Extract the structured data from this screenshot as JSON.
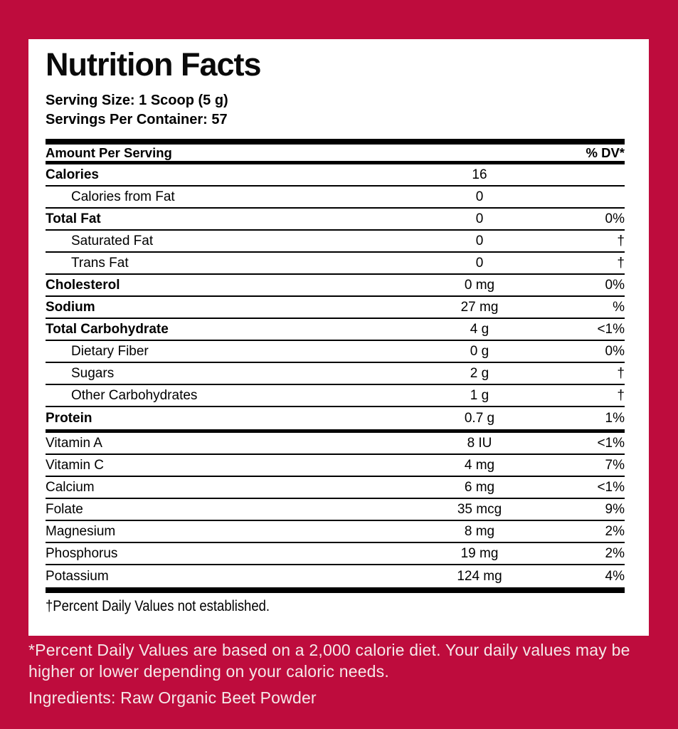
{
  "colors": {
    "background_red": "#BE0C3D",
    "panel_white": "#FFFFFF",
    "text_black": "#000000",
    "footer_text": "#F5E9E9"
  },
  "header": {
    "title": "Nutrition Facts",
    "serving_size": "Serving Size: 1 Scoop (5 g)",
    "servings_per_container": "Servings Per Container: 57",
    "amount_per_serving": "Amount Per Serving",
    "dv_header": "% DV*"
  },
  "rows": [
    {
      "label": "Calories",
      "amount": "16",
      "dv": "",
      "style": "bold",
      "bar_after": ""
    },
    {
      "label": "Calories from Fat",
      "amount": "0",
      "dv": "",
      "style": "indent",
      "bar_after": ""
    },
    {
      "label": "Total Fat",
      "amount": "0",
      "dv": "0%",
      "style": "bold",
      "bar_after": ""
    },
    {
      "label": "Saturated Fat",
      "amount": "0",
      "dv": "†",
      "style": "indent",
      "bar_after": ""
    },
    {
      "label": "Trans Fat",
      "amount": "0",
      "dv": "†",
      "style": "indent",
      "bar_after": ""
    },
    {
      "label": "Cholesterol",
      "amount": "0 mg",
      "dv": "0%",
      "style": "bold",
      "bar_after": ""
    },
    {
      "label": "Sodium",
      "amount": "27 mg",
      "dv": "%",
      "style": "bold",
      "bar_after": ""
    },
    {
      "label": "Total Carbohydrate",
      "amount": "4 g",
      "dv": "<1%",
      "style": "bold",
      "bar_after": ""
    },
    {
      "label": "Dietary Fiber",
      "amount": "0 g",
      "dv": "0%",
      "style": "indent",
      "bar_after": ""
    },
    {
      "label": "Sugars",
      "amount": "2 g",
      "dv": "†",
      "style": "indent",
      "bar_after": ""
    },
    {
      "label": "Other Carbohydrates",
      "amount": "1 g",
      "dv": "†",
      "style": "indent",
      "bar_after": ""
    },
    {
      "label": "Protein",
      "amount": "0.7 g",
      "dv": "1%",
      "style": "bold",
      "bar_after": "medium"
    },
    {
      "label": "Vitamin A",
      "amount": "8 IU",
      "dv": "<1%",
      "style": "plain",
      "bar_after": ""
    },
    {
      "label": "Vitamin C",
      "amount": "4 mg",
      "dv": "7%",
      "style": "plain",
      "bar_after": ""
    },
    {
      "label": "Calcium",
      "amount": "6 mg",
      "dv": "<1%",
      "style": "plain",
      "bar_after": ""
    },
    {
      "label": "Folate",
      "amount": "35 mcg",
      "dv": "9%",
      "style": "plain",
      "bar_after": ""
    },
    {
      "label": "Magnesium",
      "amount": "8 mg",
      "dv": "2%",
      "style": "plain",
      "bar_after": ""
    },
    {
      "label": "Phosphorus",
      "amount": "19 mg",
      "dv": "2%",
      "style": "plain",
      "bar_after": ""
    },
    {
      "label": "Potassium",
      "amount": "124 mg",
      "dv": "4%",
      "style": "plain",
      "bar_after": ""
    }
  ],
  "footnote": "†Percent Daily Values not established.",
  "footer": {
    "dv_disclaimer": "*Percent Daily Values are based on a 2,000 calorie diet. Your daily values may be higher or lower depending on your caloric needs.",
    "ingredients": "Ingredients: Raw Organic Beet Powder"
  }
}
